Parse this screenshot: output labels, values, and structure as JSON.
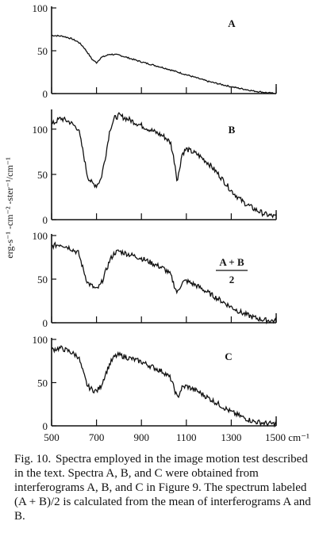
{
  "chart_data": {
    "type": "line",
    "shared_x_axis": {
      "ticks": [
        500,
        700,
        900,
        1100,
        1300,
        1500
      ],
      "tick_labels": [
        "500",
        "700",
        "900",
        "1100",
        "1300",
        "1500 cm⁻¹"
      ],
      "range": [
        500,
        1500
      ]
    },
    "ylabel": "erg-s⁻¹ -cm⁻² -ster⁻¹/cm⁻¹",
    "panels": [
      {
        "label": "A",
        "ylim": [
          0,
          100
        ],
        "yticks": [
          0,
          50,
          100
        ],
        "x": [
          500,
          550,
          590,
          620,
          640,
          660,
          680,
          700,
          720,
          760,
          800,
          850,
          900,
          1000,
          1100,
          1200,
          1300,
          1400,
          1460,
          1500
        ],
        "y": [
          68,
          67,
          64,
          60,
          55,
          48,
          40,
          36,
          42,
          46,
          45,
          41,
          37,
          30,
          22,
          14,
          8,
          3,
          1,
          0
        ]
      },
      {
        "label": "B",
        "ylim": [
          0,
          120
        ],
        "yticks": [
          0,
          50,
          100
        ],
        "x": [
          500,
          540,
          580,
          620,
          640,
          660,
          680,
          700,
          720,
          740,
          760,
          780,
          800,
          850,
          900,
          950,
          1000,
          1030,
          1050,
          1060,
          1080,
          1100,
          1150,
          1200,
          1250,
          1300,
          1350,
          1400,
          1450,
          1500
        ],
        "y": [
          105,
          112,
          108,
          100,
          75,
          48,
          40,
          38,
          45,
          70,
          100,
          112,
          115,
          110,
          104,
          98,
          92,
          85,
          60,
          42,
          72,
          78,
          72,
          62,
          48,
          32,
          20,
          12,
          6,
          3
        ]
      },
      {
        "label": "A + B",
        "label_den": "2",
        "ylim": [
          0,
          100
        ],
        "yticks": [
          0,
          50,
          100
        ],
        "x": [
          500,
          540,
          580,
          620,
          640,
          660,
          680,
          700,
          720,
          740,
          760,
          780,
          800,
          850,
          900,
          950,
          1000,
          1030,
          1050,
          1060,
          1080,
          1100,
          1150,
          1200,
          1250,
          1300,
          1350,
          1400,
          1450,
          1500
        ],
        "y": [
          88,
          90,
          86,
          80,
          62,
          46,
          42,
          38,
          44,
          58,
          72,
          80,
          82,
          78,
          74,
          68,
          62,
          55,
          40,
          34,
          46,
          48,
          42,
          34,
          26,
          18,
          11,
          6,
          3,
          2
        ]
      },
      {
        "label": "C",
        "ylim": [
          0,
          100
        ],
        "yticks": [
          0,
          50,
          100
        ],
        "x": [
          500,
          540,
          580,
          620,
          640,
          660,
          680,
          700,
          720,
          740,
          760,
          780,
          800,
          850,
          900,
          950,
          1000,
          1030,
          1050,
          1060,
          1080,
          1100,
          1150,
          1200,
          1250,
          1300,
          1350,
          1400,
          1450,
          1500
        ],
        "y": [
          88,
          90,
          86,
          80,
          62,
          46,
          42,
          40,
          46,
          60,
          72,
          80,
          82,
          78,
          74,
          68,
          62,
          55,
          40,
          32,
          44,
          46,
          40,
          32,
          24,
          16,
          10,
          5,
          3,
          2
        ]
      }
    ]
  },
  "caption": {
    "figure_number": "Fig. 10.",
    "text": "Spectra employed in the image motion test described in the text. Spectra A, B, and C were obtained from interferograms A, B, and C in Figure 9. The spectrum labeled (A + B)/2 is calculated from the mean of interferograms A and B."
  }
}
